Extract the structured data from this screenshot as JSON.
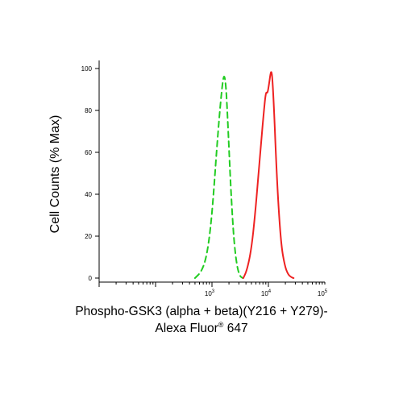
{
  "chart_data": {
    "type": "line",
    "xscale": "log",
    "xlim": [
      10,
      100000
    ],
    "ylim": [
      0,
      100
    ],
    "x_ticks": [
      {
        "value": 1000,
        "base": "10",
        "exp": "3"
      },
      {
        "value": 10000,
        "base": "10",
        "exp": "4"
      },
      {
        "value": 100000,
        "base": "10",
        "exp": "5"
      }
    ],
    "y_ticks": [
      "0",
      "20",
      "40",
      "60",
      "80",
      "100"
    ],
    "ylabel": "Cell Counts (% Max)",
    "xlabel_line1": "Phospho-GSK3 (alpha + beta)(Y216 + Y279)-",
    "xlabel_line2_prefix": "Alexa Fluor",
    "xlabel_line2_reg": "®",
    "xlabel_line2_suffix": " 647",
    "grid": false,
    "series": [
      {
        "color": "#22cc22",
        "style": "dashed",
        "x": [
          500,
          650,
          800,
          950,
          1100,
          1250,
          1400,
          1550,
          1650,
          1750,
          1850,
          2000,
          2200,
          2450,
          2750,
          3100,
          3500
        ],
        "y": [
          0,
          3,
          10,
          24,
          45,
          66,
          82,
          94,
          97,
          93,
          82,
          62,
          38,
          18,
          6,
          1,
          0
        ]
      },
      {
        "color": "#ee2222",
        "style": "solid",
        "x": [
          3600,
          4200,
          5000,
          5800,
          6600,
          7400,
          8200,
          9000,
          9600,
          10200,
          10800,
          11300,
          11800,
          12500,
          13500,
          15000,
          17000,
          19500,
          22000,
          25000,
          28000
        ],
        "y": [
          0,
          4,
          14,
          30,
          48,
          64,
          78,
          89,
          88,
          92,
          97,
          99,
          95,
          82,
          60,
          35,
          15,
          6,
          2,
          0.5,
          0
        ]
      }
    ]
  }
}
